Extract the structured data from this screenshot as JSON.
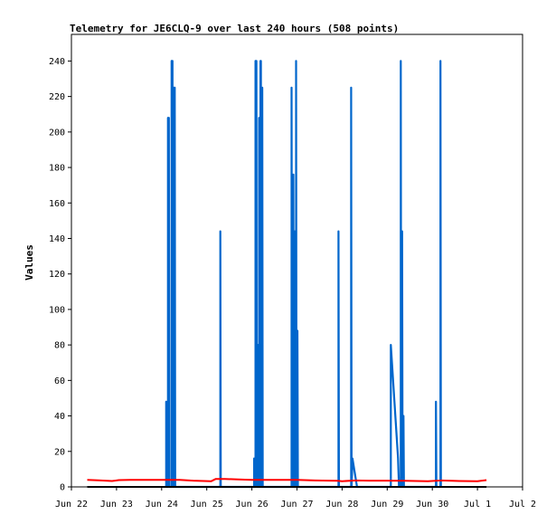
{
  "chart_data": {
    "type": "line",
    "title": "Telemetry for JE6CLQ-9 over last 240 hours (508 points)",
    "xlabel": "",
    "ylabel": "Values",
    "x_ticks": [
      "Jun 22",
      "Jun 23",
      "Jun 24",
      "Jun 25",
      "Jun 26",
      "Jun 27",
      "Jun 28",
      "Jun 29",
      "Jun 30",
      "Jul 1",
      "Jul 2"
    ],
    "xlim": [
      0,
      10
    ],
    "ylim": [
      0,
      255
    ],
    "y_ticks": [
      0,
      20,
      40,
      60,
      80,
      100,
      120,
      140,
      160,
      180,
      200,
      220,
      240
    ],
    "grid": false,
    "series": [
      {
        "color": "#0066cc",
        "points": [
          [
            2.1,
            0
          ],
          [
            2.1,
            48
          ],
          [
            2.11,
            0
          ],
          [
            2.14,
            0
          ],
          [
            2.14,
            208
          ],
          [
            2.16,
            208
          ],
          [
            2.17,
            0
          ],
          [
            2.22,
            0
          ],
          [
            2.22,
            240
          ],
          [
            2.24,
            240
          ],
          [
            2.25,
            0
          ],
          [
            2.27,
            0
          ],
          [
            2.27,
            225
          ],
          [
            2.29,
            225
          ],
          [
            2.3,
            0
          ],
          [
            3.3,
            0
          ],
          [
            3.3,
            144
          ],
          [
            3.31,
            0
          ],
          [
            4.05,
            0
          ],
          [
            4.05,
            16
          ],
          [
            4.06,
            0
          ],
          [
            4.08,
            0
          ],
          [
            4.08,
            240
          ],
          [
            4.1,
            240
          ],
          [
            4.11,
            0
          ],
          [
            4.13,
            0
          ],
          [
            4.13,
            80
          ],
          [
            4.14,
            0
          ],
          [
            4.16,
            0
          ],
          [
            4.16,
            208
          ],
          [
            4.17,
            0
          ],
          [
            4.19,
            0
          ],
          [
            4.19,
            240
          ],
          [
            4.2,
            240
          ],
          [
            4.21,
            0
          ],
          [
            4.23,
            0
          ],
          [
            4.23,
            225
          ],
          [
            4.24,
            0
          ],
          [
            4.88,
            0
          ],
          [
            4.88,
            225
          ],
          [
            4.89,
            0
          ],
          [
            4.92,
            0
          ],
          [
            4.92,
            176
          ],
          [
            4.93,
            0
          ],
          [
            4.95,
            0
          ],
          [
            4.95,
            144
          ],
          [
            4.96,
            0
          ],
          [
            4.98,
            0
          ],
          [
            4.98,
            240
          ],
          [
            4.99,
            0
          ],
          [
            5.01,
            0
          ],
          [
            5.01,
            88
          ],
          [
            5.02,
            0
          ],
          [
            5.92,
            0
          ],
          [
            5.92,
            144
          ],
          [
            5.93,
            0
          ],
          [
            6.2,
            0
          ],
          [
            6.2,
            225
          ],
          [
            6.21,
            0
          ],
          [
            6.23,
            16
          ],
          [
            6.28,
            8
          ],
          [
            6.33,
            0
          ],
          [
            7.08,
            0
          ],
          [
            7.08,
            80
          ],
          [
            7.12,
            64
          ],
          [
            7.16,
            48
          ],
          [
            7.2,
            32
          ],
          [
            7.24,
            16
          ],
          [
            7.26,
            0
          ],
          [
            7.3,
            0
          ],
          [
            7.3,
            240
          ],
          [
            7.31,
            0
          ],
          [
            7.33,
            0
          ],
          [
            7.33,
            144
          ],
          [
            7.34,
            0
          ],
          [
            7.36,
            0
          ],
          [
            7.36,
            40
          ],
          [
            7.37,
            0
          ],
          [
            8.08,
            0
          ],
          [
            8.08,
            48
          ],
          [
            8.09,
            0
          ],
          [
            8.18,
            0
          ],
          [
            8.18,
            240
          ],
          [
            8.19,
            0
          ]
        ]
      },
      {
        "color": "#ff0000",
        "points": [
          [
            0.35,
            4
          ],
          [
            0.6,
            3.7
          ],
          [
            0.9,
            3.3
          ],
          [
            1.05,
            3.8
          ],
          [
            1.3,
            4
          ],
          [
            1.7,
            4
          ],
          [
            2.0,
            4
          ],
          [
            2.4,
            4
          ],
          [
            2.7,
            3.5
          ],
          [
            3.1,
            3.2
          ],
          [
            3.2,
            4.5
          ],
          [
            3.4,
            4.5
          ],
          [
            3.7,
            4.2
          ],
          [
            4.0,
            4
          ],
          [
            4.5,
            4
          ],
          [
            5.0,
            4
          ],
          [
            5.4,
            3.6
          ],
          [
            5.9,
            3.4
          ],
          [
            6.0,
            3.2
          ],
          [
            6.3,
            3.6
          ],
          [
            6.6,
            3.5
          ],
          [
            7.0,
            3.5
          ],
          [
            7.4,
            3.4
          ],
          [
            7.9,
            3.2
          ],
          [
            8.2,
            3.6
          ],
          [
            8.6,
            3.3
          ],
          [
            9.0,
            3.2
          ],
          [
            9.2,
            3.8
          ]
        ]
      },
      {
        "color": "#000000",
        "points": [
          [
            0.35,
            0
          ],
          [
            9.2,
            0
          ]
        ]
      }
    ]
  }
}
